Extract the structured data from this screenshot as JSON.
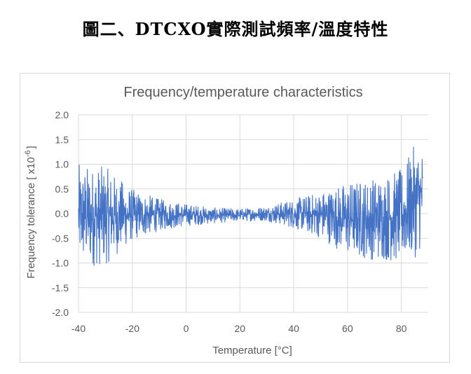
{
  "document": {
    "heading": "圖二、DTCXO實際測試頻率/溫度特性"
  },
  "chart_data": {
    "type": "line",
    "title": "Frequency/temperature characteristics",
    "xlabel": "Temperature [°C]",
    "ylabel": "Frequency tolerance [ x10",
    "ylabel_exponent": "-6",
    "ylabel_close": "]",
    "xlim": [
      -40,
      88
    ],
    "ylim": [
      -2.0,
      2.0
    ],
    "x_ticks": [
      "-40",
      "-20",
      "0",
      "20",
      "40",
      "60",
      "80"
    ],
    "x_tick_values": [
      -40,
      -20,
      0,
      20,
      40,
      60,
      80
    ],
    "y_ticks": [
      "2.0",
      "1.5",
      "1.0",
      "0.5",
      "0.0",
      "-0.5",
      "-1.0",
      "-1.5",
      "-2.0"
    ],
    "y_tick_values": [
      2.0,
      1.5,
      1.0,
      0.5,
      0.0,
      -0.5,
      -1.0,
      -1.5,
      -2.0
    ],
    "grid": true,
    "legend": "none",
    "series": [
      {
        "color": "#4472c4",
        "note_x_range": [
          -40,
          88
        ],
        "envelope": [
          {
            "x": -40,
            "max": 1.0,
            "min": -1.1
          },
          {
            "x": -30,
            "max": 0.95,
            "min": -1.05
          },
          {
            "x": -20,
            "max": 0.5,
            "min": -0.55
          },
          {
            "x": -10,
            "max": 0.3,
            "min": -0.35
          },
          {
            "x": 0,
            "max": 0.2,
            "min": -0.25
          },
          {
            "x": 10,
            "max": 0.12,
            "min": -0.2
          },
          {
            "x": 20,
            "max": 0.1,
            "min": -0.15
          },
          {
            "x": 30,
            "max": 0.15,
            "min": -0.15
          },
          {
            "x": 40,
            "max": 0.3,
            "min": -0.3
          },
          {
            "x": 50,
            "max": 0.45,
            "min": -0.5
          },
          {
            "x": 60,
            "max": 0.65,
            "min": -0.85
          },
          {
            "x": 70,
            "max": 0.75,
            "min": -0.95
          },
          {
            "x": 80,
            "max": 0.9,
            "min": -1.0
          },
          {
            "x": 85,
            "max": 1.4,
            "min": -0.9
          },
          {
            "x": 87,
            "max": 1.4,
            "min": -0.75
          }
        ]
      }
    ]
  },
  "colors": {
    "series": "#4472c4",
    "grid": "#d9d9d9",
    "text": "#595959",
    "frame": "#d9d9d9"
  }
}
